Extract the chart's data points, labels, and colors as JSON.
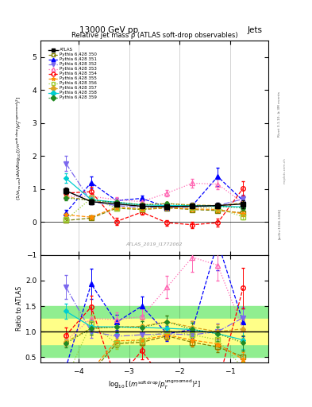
{
  "title_top": "13000 GeV pp",
  "title_right": "Jets",
  "plot_title": "Relative jet mass ρ (ATLAS soft-drop observables)",
  "watermark": "ATLAS_2019_I1772062",
  "rivet_label": "Rivet 3.1.10, ≥ 3M events",
  "arxiv_label": "[arXiv:1306.3436]",
  "xlim": [
    -4.75,
    -0.25
  ],
  "ylim_main": [
    -1.0,
    5.5
  ],
  "ylim_ratio": [
    0.4,
    2.5
  ],
  "yticks_main": [
    -1,
    0,
    1,
    2,
    3,
    4,
    5
  ],
  "yticks_ratio": [
    0.5,
    1.0,
    1.5,
    2.0
  ],
  "xcenters": [
    -4.25,
    -3.75,
    -3.25,
    -2.75,
    -2.25,
    -1.75,
    -1.25,
    -0.75
  ],
  "xedges": [
    -4.5,
    -4.0,
    -3.5,
    -3.0,
    -2.5,
    -2.0,
    -1.5,
    -1.0,
    -0.5
  ],
  "series": {
    "ATLAS": {
      "color": "#000000",
      "marker": "s",
      "markersize": 4,
      "linestyle": "-",
      "linewidth": 1.0,
      "markerfacecolor": "#000000",
      "label": "ATLAS",
      "values": [
        0.95,
        0.62,
        0.55,
        0.48,
        0.47,
        0.48,
        0.5,
        0.55
      ],
      "errors": [
        0.1,
        0.07,
        0.06,
        0.05,
        0.05,
        0.06,
        0.08,
        0.12
      ]
    },
    "350": {
      "color": "#808000",
      "marker": "s",
      "markersize": 4,
      "linestyle": "--",
      "linewidth": 0.9,
      "markerfacecolor": "none",
      "label": "Pythia 6.428 350",
      "values": [
        0.05,
        0.12,
        0.42,
        0.38,
        0.43,
        0.38,
        0.35,
        0.28
      ],
      "errors": [
        0.04,
        0.04,
        0.04,
        0.04,
        0.04,
        0.04,
        0.05,
        0.07
      ]
    },
    "351": {
      "color": "#0000FF",
      "marker": "^",
      "markersize": 4,
      "linestyle": "--",
      "linewidth": 0.9,
      "markerfacecolor": "#0000FF",
      "label": "Pythia 6.428 351",
      "values": [
        0.28,
        1.2,
        0.65,
        0.72,
        0.45,
        0.5,
        1.38,
        0.65
      ],
      "errors": [
        0.08,
        0.18,
        0.08,
        0.09,
        0.07,
        0.08,
        0.28,
        0.15
      ]
    },
    "352": {
      "color": "#7B68EE",
      "marker": "v",
      "markersize": 4,
      "linestyle": "-.",
      "linewidth": 0.9,
      "markerfacecolor": "#7B68EE",
      "label": "Pythia 6.428 352",
      "values": [
        1.78,
        0.62,
        0.5,
        0.45,
        0.45,
        0.45,
        0.5,
        0.7
      ],
      "errors": [
        0.22,
        0.08,
        0.06,
        0.05,
        0.05,
        0.06,
        0.08,
        0.12
      ]
    },
    "353": {
      "color": "#FF69B4",
      "marker": "^",
      "markersize": 4,
      "linestyle": ":",
      "linewidth": 0.9,
      "markerfacecolor": "none",
      "label": "Pythia 6.428 353",
      "values": [
        0.78,
        0.78,
        0.68,
        0.62,
        0.88,
        1.18,
        1.15,
        0.58
      ],
      "errors": [
        0.1,
        0.1,
        0.08,
        0.08,
        0.1,
        0.14,
        0.15,
        0.12
      ]
    },
    "354": {
      "color": "#FF0000",
      "marker": "o",
      "markersize": 4,
      "linestyle": "--",
      "linewidth": 0.9,
      "markerfacecolor": "none",
      "label": "Pythia 6.428 354",
      "values": [
        0.88,
        0.92,
        0.02,
        0.3,
        -0.02,
        -0.08,
        -0.02,
        1.02
      ],
      "errors": [
        0.14,
        0.14,
        0.1,
        0.08,
        0.08,
        0.1,
        0.12,
        0.22
      ]
    },
    "355": {
      "color": "#FF8C00",
      "marker": "*",
      "markersize": 5,
      "linestyle": "--",
      "linewidth": 0.9,
      "markerfacecolor": "#FF8C00",
      "label": "Pythia 6.428 355",
      "values": [
        0.22,
        0.15,
        0.45,
        0.4,
        0.44,
        0.4,
        0.38,
        0.25
      ],
      "errors": [
        0.05,
        0.05,
        0.05,
        0.04,
        0.04,
        0.05,
        0.06,
        0.08
      ]
    },
    "356": {
      "color": "#9ACD32",
      "marker": "s",
      "markersize": 4,
      "linestyle": ":",
      "linewidth": 0.9,
      "markerfacecolor": "none",
      "label": "Pythia 6.428 356",
      "values": [
        0.07,
        0.72,
        0.42,
        0.4,
        0.48,
        0.45,
        0.42,
        0.16
      ],
      "errors": [
        0.04,
        0.1,
        0.06,
        0.05,
        0.05,
        0.06,
        0.07,
        0.07
      ]
    },
    "357": {
      "color": "#DAA520",
      "marker": "D",
      "markersize": 3,
      "linestyle": "--",
      "linewidth": 0.9,
      "markerfacecolor": "#DAA520",
      "label": "Pythia 6.428 357",
      "values": [
        0.76,
        0.66,
        0.6,
        0.53,
        0.56,
        0.52,
        0.5,
        0.58
      ],
      "errors": [
        0.08,
        0.08,
        0.06,
        0.06,
        0.06,
        0.06,
        0.07,
        0.1
      ]
    },
    "358": {
      "color": "#00CED1",
      "marker": "D",
      "markersize": 3,
      "linestyle": "-",
      "linewidth": 0.9,
      "markerfacecolor": "#00CED1",
      "label": "Pythia 6.428 358",
      "values": [
        1.33,
        0.68,
        0.6,
        0.52,
        0.5,
        0.5,
        0.48,
        0.46
      ],
      "errors": [
        0.14,
        0.08,
        0.07,
        0.06,
        0.06,
        0.06,
        0.07,
        0.1
      ]
    },
    "359": {
      "color": "#228B22",
      "marker": "D",
      "markersize": 3,
      "linestyle": ":",
      "linewidth": 0.9,
      "markerfacecolor": "#228B22",
      "label": "Pythia 6.428 359",
      "values": [
        0.73,
        0.66,
        0.6,
        0.52,
        0.56,
        0.5,
        0.48,
        0.43
      ],
      "errors": [
        0.08,
        0.08,
        0.06,
        0.06,
        0.06,
        0.06,
        0.07,
        0.08
      ]
    }
  },
  "ratio_band_yellow": [
    0.75,
    1.25
  ],
  "ratio_band_green": [
    0.5,
    1.5
  ],
  "background_color": "#ffffff"
}
